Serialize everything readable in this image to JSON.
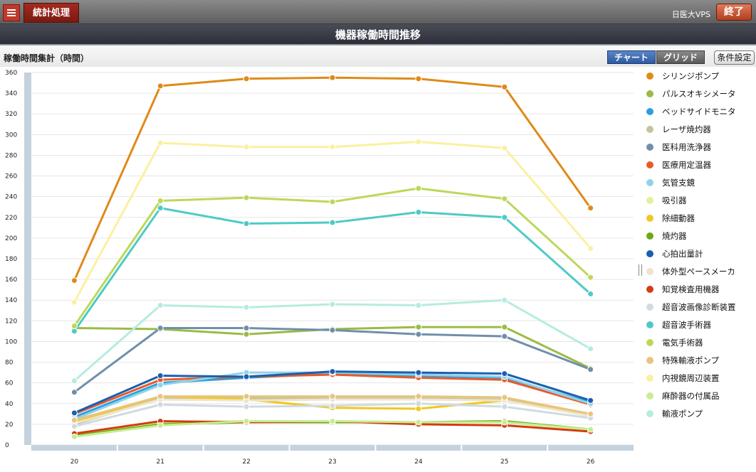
{
  "header": {
    "app_tab_label": "統計処理",
    "org_name": "日医大VPS",
    "exit_label": "終了"
  },
  "page_title": "機器稼働時間推移",
  "toolbar": {
    "section_title": "稼働時間集計（時間）",
    "chart_label": "チャート",
    "grid_label": "グリッド",
    "conditions_label": "条件設定"
  },
  "colors": {
    "accent": "#a52a1e",
    "active_view": "#2e5aa0"
  },
  "chart_data": {
    "type": "line",
    "x": [
      "20",
      "21",
      "22",
      "23",
      "24",
      "25",
      "26"
    ],
    "ylim": [
      0,
      360
    ],
    "ytick_step": 20,
    "grid": true,
    "legend_position": "right",
    "series": [
      {
        "name": "シリンジポンプ",
        "color": "#e08a18",
        "values": [
          159,
          347,
          354,
          355,
          354,
          346,
          229
        ]
      },
      {
        "name": "パルスオキシメータ",
        "color": "#9bbb45",
        "values": [
          113,
          112,
          107,
          112,
          114,
          114,
          74
        ]
      },
      {
        "name": "ベッドサイドモニタ",
        "color": "#2a9fe0",
        "values": [
          27,
          60,
          65,
          69,
          67,
          65,
          41
        ]
      },
      {
        "name": "レーザ焼灼器",
        "color": "#c5c49a",
        "values": [
          20,
          45,
          45,
          45,
          45,
          44,
          29
        ]
      },
      {
        "name": "医科用洗浄器",
        "color": "#6f8faa",
        "values": [
          51,
          113,
          113,
          111,
          107,
          105,
          73
        ]
      },
      {
        "name": "医療用定温器",
        "color": "#e85a28",
        "values": [
          30,
          63,
          66,
          68,
          65,
          63,
          39
        ]
      },
      {
        "name": "気管支鏡",
        "color": "#8fd3e8",
        "values": [
          25,
          58,
          70,
          70,
          68,
          66,
          40
        ]
      },
      {
        "name": "吸引器",
        "color": "#e2f09a",
        "values": [
          10,
          22,
          23,
          23,
          22,
          22,
          14
        ]
      },
      {
        "name": "除細動器",
        "color": "#f0c820",
        "values": [
          22,
          47,
          44,
          36,
          35,
          43,
          29
        ]
      },
      {
        "name": "焼灼器",
        "color": "#6aaa10",
        "values": [
          9,
          20,
          22,
          22,
          22,
          23,
          15
        ]
      },
      {
        "name": "心拍出量計",
        "color": "#1a5fb0",
        "values": [
          31,
          67,
          66,
          71,
          70,
          69,
          43
        ]
      },
      {
        "name": "体外型ペースメーカ",
        "color": "#ede5cc",
        "values": [
          21,
          44,
          43,
          44,
          44,
          43,
          28
        ]
      },
      {
        "name": "知覚検査用機器",
        "color": "#d23c12",
        "values": [
          11,
          23,
          22,
          23,
          20,
          19,
          13
        ]
      },
      {
        "name": "超音波画像診断装置",
        "color": "#d0dae0",
        "values": [
          18,
          39,
          37,
          38,
          40,
          37,
          26
        ]
      },
      {
        "name": "超音波手術器",
        "color": "#4ecac6",
        "values": [
          110,
          229,
          214,
          215,
          225,
          220,
          146
        ]
      },
      {
        "name": "電気手術器",
        "color": "#bcd85a",
        "values": [
          115,
          236,
          239,
          235,
          248,
          238,
          162
        ]
      },
      {
        "name": "特殊輸液ポンプ",
        "color": "#e8c47e",
        "values": [
          24,
          47,
          47,
          47,
          47,
          46,
          30
        ]
      },
      {
        "name": "内視鏡周辺装置",
        "color": "#fbf0a0",
        "values": [
          138,
          292,
          288,
          288,
          293,
          287,
          190
        ]
      },
      {
        "name": "麻酔器の付属品",
        "color": "#c8ec90",
        "values": [
          8,
          19,
          23,
          23,
          22,
          22,
          15
        ]
      },
      {
        "name": "輸液ポンプ",
        "color": "#b6ece0",
        "values": [
          62,
          135,
          133,
          136,
          135,
          140,
          93
        ]
      }
    ]
  }
}
